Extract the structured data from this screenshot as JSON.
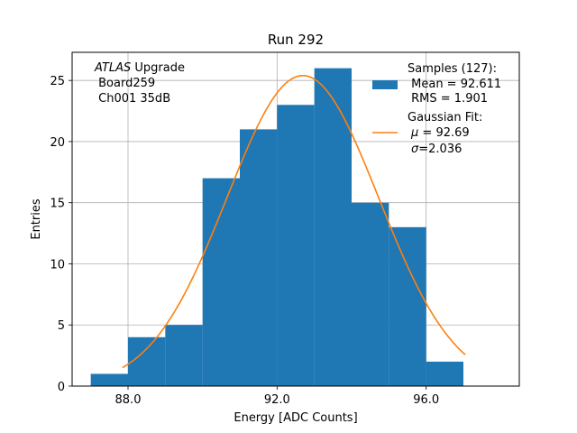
{
  "chart_data": {
    "type": "bar",
    "title": "Run 292",
    "xlabel": "Energy [ADC Counts]",
    "ylabel": "Entries",
    "xlim": [
      86.5,
      98.5
    ],
    "ylim": [
      0,
      27.3
    ],
    "grid": true,
    "x_ticks": [
      88.0,
      92.0,
      96.0
    ],
    "x_tick_labels": [
      "88.0",
      "92.0",
      "96.0"
    ],
    "y_ticks": [
      0,
      5,
      10,
      15,
      20,
      25
    ],
    "y_tick_labels": [
      "0",
      "5",
      "10",
      "15",
      "20",
      "25"
    ],
    "bin_edges": [
      87,
      88,
      89,
      90,
      91,
      92,
      93,
      94,
      95,
      96,
      97
    ],
    "values": [
      1,
      4,
      5,
      17,
      21,
      23,
      26,
      15,
      13,
      2
    ],
    "bar_color": "#1f77b4",
    "fit": {
      "type": "gaussian",
      "mu": 92.69,
      "sigma": 2.036,
      "amplitude": 25.4,
      "x_range": [
        87.85,
        97.05
      ],
      "color": "#ff7f0e"
    },
    "annotation": {
      "italic_part": "ATLAS",
      "line1_rest": " Upgrade",
      "line2": " Board259",
      "line3": " Ch001 35dB"
    },
    "legend": {
      "position": "top-right",
      "samples": {
        "title": "Samples (127):",
        "line1": " Mean = 92.611",
        "line2": " RMS = 1.901"
      },
      "fit": {
        "title": "Gaussian Fit:",
        "mu_symbol": "μ",
        "mu_text": " = 92.69",
        "sigma_symbol": "σ",
        "sigma_text": "=2.036"
      }
    }
  }
}
